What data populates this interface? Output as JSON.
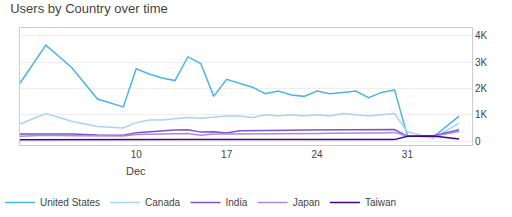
{
  "chart_data": {
    "type": "line",
    "title": "Users by Country over time",
    "x": [
      1,
      3,
      5,
      7,
      9,
      10,
      11,
      12,
      13,
      14,
      15,
      16,
      17,
      18,
      19,
      20,
      21,
      22,
      23,
      24,
      25,
      26,
      27,
      28,
      29,
      30,
      31,
      33,
      35
    ],
    "series": [
      {
        "name": "United States",
        "color": "#4ab5e8",
        "values": [
          2200,
          3650,
          2800,
          1600,
          1300,
          2750,
          2550,
          2400,
          2300,
          3200,
          2950,
          1700,
          2350,
          2200,
          2050,
          1800,
          1900,
          1750,
          1700,
          1900,
          1800,
          1850,
          1900,
          1650,
          1850,
          1950,
          200,
          150,
          950
        ]
      },
      {
        "name": "Canada",
        "color": "#a8d4f5",
        "values": [
          650,
          1050,
          750,
          550,
          500,
          700,
          800,
          800,
          850,
          900,
          870,
          900,
          950,
          950,
          900,
          1000,
          950,
          1000,
          950,
          1000,
          950,
          1050,
          1000,
          950,
          1000,
          1050,
          350,
          100,
          680
        ]
      },
      {
        "name": "India",
        "color": "#7755cc",
        "values": [
          270,
          280,
          270,
          230,
          220,
          320,
          360,
          400,
          420,
          430,
          340,
          350,
          310,
          390,
          390,
          390,
          400,
          410,
          420,
          420,
          420,
          430,
          430,
          430,
          430,
          440,
          180,
          200,
          430
        ]
      },
      {
        "name": "Japan",
        "color": "#aa88dd",
        "values": [
          180,
          220,
          200,
          200,
          195,
          250,
          255,
          270,
          275,
          285,
          225,
          270,
          270,
          270,
          270,
          270,
          280,
          290,
          290,
          290,
          300,
          310,
          310,
          310,
          310,
          330,
          180,
          180,
          360
        ]
      },
      {
        "name": "Taiwan",
        "color": "#440088",
        "values": [
          50,
          55,
          50,
          50,
          50,
          55,
          55,
          55,
          55,
          55,
          55,
          55,
          55,
          55,
          55,
          55,
          55,
          55,
          55,
          55,
          55,
          55,
          55,
          55,
          55,
          55,
          180,
          190,
          80
        ]
      }
    ],
    "xlim": [
      1,
      36
    ],
    "xticks": [
      10,
      17,
      24,
      31
    ],
    "ylim": [
      -150,
      4300
    ],
    "yticks": [
      0,
      {
        "value": 1000,
        "label": "1K"
      },
      {
        "value": 2000,
        "label": "2K"
      },
      {
        "value": 3000,
        "label": "3K"
      },
      {
        "value": 4000,
        "label": "4K"
      }
    ],
    "annotations": [
      {
        "text": "Dec",
        "x": 10
      }
    ],
    "grid": true,
    "legend": "bottom"
  }
}
